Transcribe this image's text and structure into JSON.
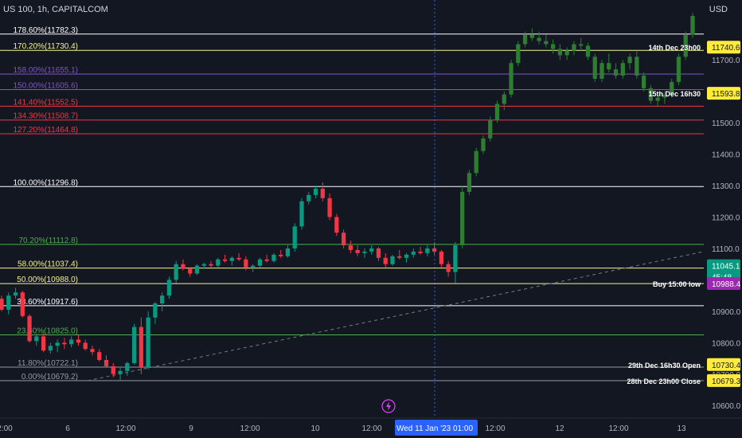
{
  "header": {
    "symbol_line": "US 100, 1h, CAPITALCOM",
    "currency": "USD"
  },
  "colors": {
    "background": "#131722",
    "up": "#089981",
    "down": "#f23645",
    "axis_text": "#b2b5be",
    "grid_vline": "#2962ff",
    "trend": "#787b86"
  },
  "chart_data": {
    "type": "candlestick",
    "title": "US 100, 1h, CAPITALCOM",
    "ylabel": "USD",
    "ylim": [
      10560,
      11840
    ],
    "y_ticks": [
      10600.0,
      10700.0,
      10800.0,
      10900.0,
      11000.0,
      11100.0,
      11200.0,
      11300.0,
      11400.0,
      11500.0,
      11600.0,
      11700.0
    ],
    "x_ticks": [
      "2:00",
      "6",
      "12:00",
      "9",
      "12:00",
      "10",
      "12:00",
      "Wed 11 Jan '23  01:00",
      "12:00",
      "12",
      "12:00",
      "13"
    ],
    "fib_levels": [
      {
        "label": "0.00%(10679.2)",
        "value": 10679.2,
        "color": "#9598a1"
      },
      {
        "label": "11.80%(10722.1)",
        "value": 10722.1,
        "color": "#9598a1"
      },
      {
        "label": "23.60%(10825.0)",
        "value": 10825.0,
        "color": "#4caf50"
      },
      {
        "label": "38.60%(10917.6)",
        "value": 10917.6,
        "color": "#ffffff"
      },
      {
        "label": "50.00%(10988.0)",
        "value": 10988.0,
        "color": "#f5f58a"
      },
      {
        "label": "58.00%(11037.4)",
        "value": 11037.4,
        "color": "#f5f58a"
      },
      {
        "label": "70.20%(11112.8)",
        "value": 11112.8,
        "color": "#4caf50"
      },
      {
        "label": "100.00%(11296.8)",
        "value": 11296.8,
        "color": "#ffffff"
      },
      {
        "label": "127.20%(11464.8)",
        "value": 11464.8,
        "color": "#f23645"
      },
      {
        "label": "134.30%(11508.7)",
        "value": 11508.7,
        "color": "#f23645"
      },
      {
        "label": "141.40%(11552.5)",
        "value": 11552.5,
        "color": "#f23645"
      },
      {
        "label": "150.00%(11605.6)",
        "value": 11605.6,
        "color": "#7e57c2"
      },
      {
        "label": "158.00%(11655.1)",
        "value": 11655.1,
        "color": "#7e57c2"
      },
      {
        "label": "170.20%(11730.4)",
        "value": 11730.4,
        "color": "#f5f58a"
      },
      {
        "label": "178.60%(11782.3)",
        "value": 11782.3,
        "color": "#ffffff"
      }
    ],
    "price_markers": [
      {
        "note": "14th Dec 23h00",
        "value": 11740.6,
        "price_label": "11740.6",
        "bg": "#ffeb3b",
        "fg": "#131722"
      },
      {
        "note": "15th Dec 16h30",
        "value": 11593.8,
        "price_label": "11593.8",
        "bg": "#ffeb3b",
        "fg": "#131722"
      },
      {
        "note": "",
        "value": 11045.1,
        "price_label": "11045.1",
        "sub_label": "45:48",
        "bg": "#089981",
        "fg": "#ffffff"
      },
      {
        "note": "Buy 15:00 low",
        "value": 10988.4,
        "price_label": "10988.4",
        "bg": "#9c27b0",
        "fg": "#ffffff"
      },
      {
        "note": "29th Dec 16h30 Open",
        "value": 10730.4,
        "price_label": "10730.4",
        "bg": "#ffeb3b",
        "fg": "#131722"
      },
      {
        "note": "28th Dec 23h00 Close",
        "value": 10679.3,
        "price_label": "10679.3",
        "bg": "#ffeb3b",
        "fg": "#131722"
      }
    ],
    "candles": [
      [
        10940,
        10950,
        10900,
        10905
      ],
      [
        10905,
        10960,
        10890,
        10950
      ],
      [
        10950,
        10975,
        10940,
        10960
      ],
      [
        10960,
        10965,
        10880,
        10885
      ],
      [
        10885,
        10890,
        10800,
        10805
      ],
      [
        10805,
        10830,
        10790,
        10820
      ],
      [
        10820,
        10830,
        10770,
        10775
      ],
      [
        10775,
        10800,
        10765,
        10790
      ],
      [
        10790,
        10810,
        10770,
        10800
      ],
      [
        10800,
        10815,
        10780,
        10795
      ],
      [
        10795,
        10820,
        10785,
        10810
      ],
      [
        10810,
        10825,
        10790,
        10800
      ],
      [
        10800,
        10810,
        10775,
        10780
      ],
      [
        10780,
        10790,
        10760,
        10770
      ],
      [
        10770,
        10780,
        10740,
        10745
      ],
      [
        10745,
        10760,
        10720,
        10725
      ],
      [
        10725,
        10735,
        10690,
        10700
      ],
      [
        10700,
        10720,
        10680,
        10710
      ],
      [
        10710,
        10740,
        10695,
        10735
      ],
      [
        10735,
        10860,
        10730,
        10850
      ],
      [
        10850,
        10880,
        10700,
        10720
      ],
      [
        10720,
        10900,
        10715,
        10880
      ],
      [
        10880,
        10930,
        10860,
        10925
      ],
      [
        10925,
        10960,
        10900,
        10950
      ],
      [
        10950,
        11010,
        10940,
        11000
      ],
      [
        11000,
        11060,
        10990,
        11050
      ],
      [
        11050,
        11065,
        11030,
        11035
      ],
      [
        11035,
        11040,
        11010,
        11020
      ],
      [
        11020,
        11050,
        11015,
        11045
      ],
      [
        11045,
        11055,
        11035,
        11050
      ],
      [
        11050,
        11060,
        11040,
        11045
      ],
      [
        11045,
        11070,
        11040,
        11065
      ],
      [
        11065,
        11080,
        11055,
        11060
      ],
      [
        11060,
        11075,
        11045,
        11070
      ],
      [
        11070,
        11085,
        11060,
        11065
      ],
      [
        11065,
        11075,
        11030,
        11040
      ],
      [
        11040,
        11050,
        11025,
        11045
      ],
      [
        11045,
        11070,
        11040,
        11065
      ],
      [
        11065,
        11080,
        11055,
        11060
      ],
      [
        11060,
        11085,
        11055,
        11080
      ],
      [
        11080,
        11095,
        11070,
        11075
      ],
      [
        11075,
        11110,
        11070,
        11100
      ],
      [
        11100,
        11180,
        11090,
        11170
      ],
      [
        11170,
        11260,
        11160,
        11250
      ],
      [
        11250,
        11280,
        11240,
        11270
      ],
      [
        11270,
        11300,
        11260,
        11290
      ],
      [
        11290,
        11310,
        11250,
        11260
      ],
      [
        11260,
        11275,
        11190,
        11200
      ],
      [
        11200,
        11210,
        11140,
        11150
      ],
      [
        11150,
        11160,
        11100,
        11110
      ],
      [
        11110,
        11125,
        11085,
        11095
      ],
      [
        11095,
        11110,
        11075,
        11085
      ],
      [
        11085,
        11100,
        11070,
        11090
      ],
      [
        11090,
        11110,
        11080,
        11100
      ],
      [
        11100,
        11105,
        11060,
        11070
      ],
      [
        11070,
        11085,
        11040,
        11050
      ],
      [
        11050,
        11080,
        11045,
        11075
      ],
      [
        11075,
        11095,
        11065,
        11070
      ],
      [
        11070,
        11085,
        11055,
        11080
      ],
      [
        11080,
        11100,
        11070,
        11090
      ],
      [
        11090,
        11105,
        11080,
        11085
      ],
      [
        11085,
        11110,
        11075,
        11100
      ],
      [
        11100,
        11120,
        11080,
        11090
      ],
      [
        11090,
        11095,
        11040,
        11050
      ],
      [
        11050,
        11060,
        11010,
        11025
      ],
      [
        11025,
        11120,
        10990,
        11110
      ],
      [
        11110,
        11300,
        11100,
        11280
      ],
      [
        11280,
        11350,
        11270,
        11340
      ],
      [
        11340,
        11420,
        11330,
        11410
      ],
      [
        11410,
        11460,
        11400,
        11450
      ],
      [
        11450,
        11520,
        11440,
        11510
      ],
      [
        11510,
        11570,
        11500,
        11560
      ],
      [
        11560,
        11600,
        11540,
        11590
      ],
      [
        11590,
        11700,
        11580,
        11690
      ],
      [
        11690,
        11760,
        11680,
        11750
      ],
      [
        11750,
        11790,
        11740,
        11780
      ],
      [
        11780,
        11800,
        11760,
        11770
      ],
      [
        11770,
        11790,
        11750,
        11760
      ],
      [
        11760,
        11780,
        11740,
        11750
      ],
      [
        11750,
        11765,
        11720,
        11735
      ],
      [
        11735,
        11750,
        11700,
        11715
      ],
      [
        11715,
        11740,
        11700,
        11730
      ],
      [
        11730,
        11760,
        11715,
        11750
      ],
      [
        11750,
        11770,
        11730,
        11745
      ],
      [
        11745,
        11755,
        11700,
        11710
      ],
      [
        11710,
        11720,
        11630,
        11640
      ],
      [
        11640,
        11700,
        11630,
        11690
      ],
      [
        11690,
        11720,
        11660,
        11670
      ],
      [
        11670,
        11690,
        11640,
        11650
      ],
      [
        11650,
        11700,
        11640,
        11690
      ],
      [
        11690,
        11720,
        11670,
        11710
      ],
      [
        11710,
        11730,
        11640,
        11650
      ],
      [
        11650,
        11660,
        11600,
        11610
      ],
      [
        11610,
        11620,
        11560,
        11570
      ],
      [
        11570,
        11590,
        11550,
        11580
      ],
      [
        11580,
        11600,
        11560,
        11590
      ],
      [
        11590,
        11640,
        11580,
        11630
      ],
      [
        11630,
        11720,
        11620,
        11710
      ],
      [
        11710,
        11790,
        11700,
        11780
      ],
      [
        11780,
        11850,
        11770,
        11840
      ]
    ]
  }
}
